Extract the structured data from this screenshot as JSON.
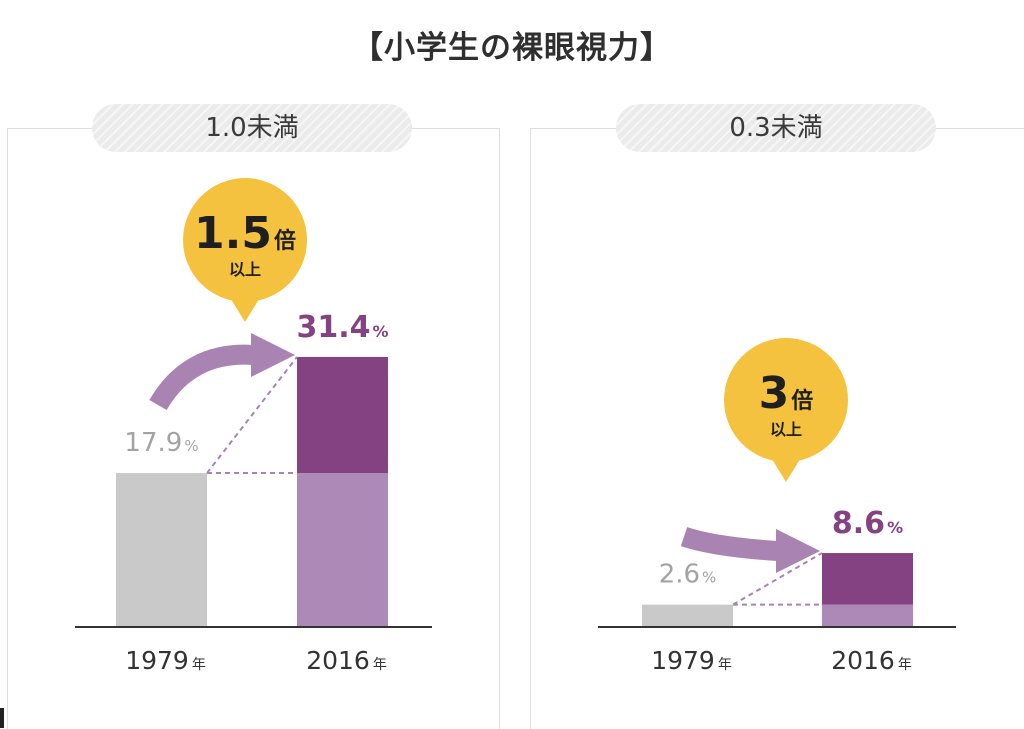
{
  "title": "【小学生の裸眼視力】",
  "colors": {
    "bar_1979": "#c9c9c9",
    "bar_2016_base": "#ad89b8",
    "bar_2016_increase": "#844283",
    "bubble": "#f4c23f",
    "arrow": "#a983b2",
    "value_1979_text": "#a3a3a3",
    "value_2016_text": "#844283",
    "baseline": "#333333"
  },
  "chart_data": [
    {
      "type": "bar",
      "title": "1.0未満",
      "categories": [
        "1979",
        "2016"
      ],
      "category_unit": "年",
      "values": [
        17.9,
        31.4
      ],
      "value_unit": "%",
      "ylim": [
        0,
        31.4
      ],
      "grid": false,
      "annotation": {
        "main": "1.5",
        "unit": "倍",
        "sub": "以上"
      }
    },
    {
      "type": "bar",
      "title": "0.3未満",
      "categories": [
        "1979",
        "2016"
      ],
      "category_unit": "年",
      "values": [
        2.6,
        8.6
      ],
      "value_unit": "%",
      "ylim": [
        0,
        31.4
      ],
      "grid": false,
      "annotation": {
        "main": "3",
        "unit": "倍",
        "sub": "以上"
      }
    }
  ]
}
